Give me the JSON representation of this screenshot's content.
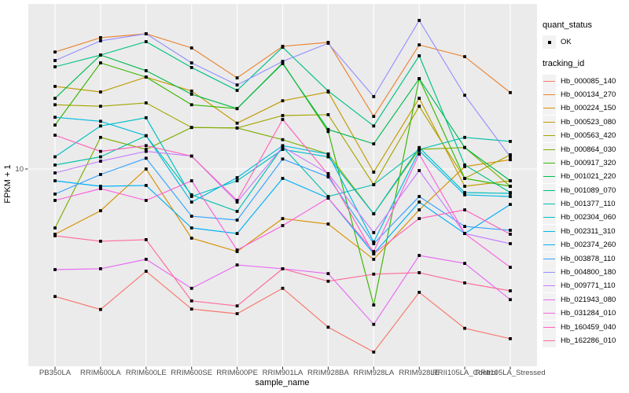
{
  "figure": {
    "panel_bg": "#EBEBEB",
    "grid_color": "#FFFFFF",
    "tick_color": "#333333",
    "point_color": "#000000",
    "axis_text_color": "#4D4D4D",
    "legend_key_bg": "#F2F2F2"
  },
  "axes": {
    "x_title": "sample_name",
    "y_title": "FPKM + 1",
    "y_tick_label": "10"
  },
  "legend": {
    "quant_title": "quant_status",
    "quant_item_label": "OK",
    "tracking_title": "tracking_id"
  },
  "chart_data": {
    "type": "line",
    "title": "",
    "xlabel": "sample_name",
    "ylabel": "FPKM + 1",
    "y_scale": "log10",
    "y_ticks": [
      10
    ],
    "ylim": [
      1.05,
      70
    ],
    "grid": true,
    "legend_position": "right",
    "point_shape": "filled-square",
    "quant_status": "OK",
    "categories": [
      "PB350LA",
      "RRIM600LA",
      "RRIM600LE",
      "RRIM600SE",
      "RRIM600PE",
      "RRIM901LA",
      "RRIM928BA",
      "RRIM928LA",
      "RRIM928LE",
      "RRII105LA_Control",
      "RRII105LA_Stressed"
    ],
    "series": [
      {
        "name": "Hb_000085_140",
        "color": "#F8766D",
        "values": [
          2.11,
          1.8,
          2.87,
          1.81,
          1.71,
          2.33,
          1.45,
          1.07,
          2.22,
          1.43,
          1.26
        ]
      },
      {
        "name": "Hb_000134_270",
        "color": "#EA8331",
        "values": [
          41.7,
          49.7,
          52.1,
          43.8,
          30.4,
          44.7,
          46.9,
          19.0,
          45.5,
          39.4,
          25.4
        ]
      },
      {
        "name": "Hb_000224_150",
        "color": "#D89000",
        "values": [
          4.51,
          6.01,
          10.0,
          4.3,
          3.65,
          5.46,
          5.11,
          3.32,
          6.07,
          10.3,
          11.2
        ]
      },
      {
        "name": "Hb_000523_080",
        "color": "#C09B00",
        "values": [
          27.4,
          25.6,
          30.7,
          25.9,
          17.5,
          23.0,
          25.6,
          9.62,
          23.7,
          8.1,
          8.66
        ]
      },
      {
        "name": "Hb_000563_420",
        "color": "#A3A500",
        "values": [
          21.9,
          21.5,
          22.4,
          16.6,
          16.5,
          19.2,
          19.4,
          8.26,
          21.5,
          8.91,
          11.9
        ]
      },
      {
        "name": "Hb_000864_030",
        "color": "#7CAE00",
        "values": [
          4.87,
          14.7,
          12.7,
          16.6,
          16.5,
          14.3,
          12.0,
          5.79,
          12.7,
          13.0,
          8.1
        ]
      },
      {
        "name": "Hb_000917_320",
        "color": "#39B600",
        "values": [
          17.1,
          36.5,
          30.7,
          21.9,
          20.9,
          36.5,
          15.8,
          1.9,
          30.1,
          8.91,
          8.1
        ]
      },
      {
        "name": "Hb_001021_220",
        "color": "#00BB4E",
        "values": [
          23.7,
          40.2,
          33.2,
          24.9,
          20.9,
          36.2,
          16.2,
          13.6,
          30.1,
          13.0,
          8.66
        ]
      },
      {
        "name": "Hb_001089_070",
        "color": "#00C087",
        "values": [
          34.8,
          40.2,
          47.3,
          34.5,
          26.1,
          44.2,
          25.9,
          16.9,
          39.8,
          10.5,
          7.5
        ]
      },
      {
        "name": "Hb_001377_110",
        "color": "#00C1AB",
        "values": [
          10.5,
          11.6,
          15.0,
          7.29,
          5.96,
          13.1,
          7.15,
          8.26,
          12.7,
          14.7,
          14.0
        ]
      },
      {
        "name": "Hb_002304_060",
        "color": "#00BFC4",
        "values": [
          11.6,
          16.9,
          18.7,
          7.15,
          8.66,
          12.7,
          11.6,
          5.79,
          13.0,
          7.5,
          7.43
        ]
      },
      {
        "name": "Hb_002311_310",
        "color": "#00BAE0",
        "values": [
          18.8,
          17.9,
          15.0,
          6.68,
          9.0,
          13.3,
          12.0,
          4.1,
          12.5,
          7.29,
          7.15
        ]
      },
      {
        "name": "Hb_002374_260",
        "color": "#00B0F6",
        "values": [
          8.66,
          8.1,
          8.18,
          4.87,
          4.55,
          8.91,
          7.01,
          3.55,
          6.68,
          4.55,
          6.49
        ]
      },
      {
        "name": "Hb_003878_110",
        "color": "#35A2FF",
        "values": [
          7.36,
          9.35,
          11.4,
          5.62,
          5.36,
          11.3,
          9.08,
          4.02,
          7.15,
          4.96,
          4.73
        ]
      },
      {
        "name": "Hb_004800_180",
        "color": "#9590FF",
        "values": [
          37.6,
          47.8,
          52.1,
          36.5,
          27.9,
          37.2,
          46.4,
          24.2,
          61.3,
          24.6,
          11.6
        ]
      },
      {
        "name": "Hb_009771_110",
        "color": "#C77CFF",
        "values": [
          9.53,
          11.0,
          12.4,
          11.7,
          6.68,
          13.1,
          9.46,
          4.6,
          9.81,
          4.55,
          4.02
        ]
      },
      {
        "name": "Hb_021943_080",
        "color": "#E76BF3",
        "values": [
          2.93,
          2.96,
          3.32,
          2.33,
          3.1,
          2.96,
          2.79,
          1.5,
          3.48,
          3.16,
          2.03
        ]
      },
      {
        "name": "Hb_031284_010",
        "color": "#FA62DB",
        "values": [
          6.81,
          7.87,
          6.81,
          8.66,
          3.72,
          5.01,
          7.01,
          3.65,
          12.0,
          4.55,
          3.01
        ]
      },
      {
        "name": "Hb_160459_040",
        "color": "#FF62BC",
        "values": [
          15.1,
          12.4,
          13.3,
          11.7,
          6.81,
          18.3,
          9.35,
          3.55,
          5.46,
          6.07,
          4.51
        ]
      },
      {
        "name": "Hb_162286_010",
        "color": "#FF6A98",
        "values": [
          4.43,
          4.14,
          4.22,
          2.0,
          1.88,
          2.96,
          2.54,
          2.77,
          2.82,
          2.49,
          2.26
        ]
      }
    ]
  }
}
